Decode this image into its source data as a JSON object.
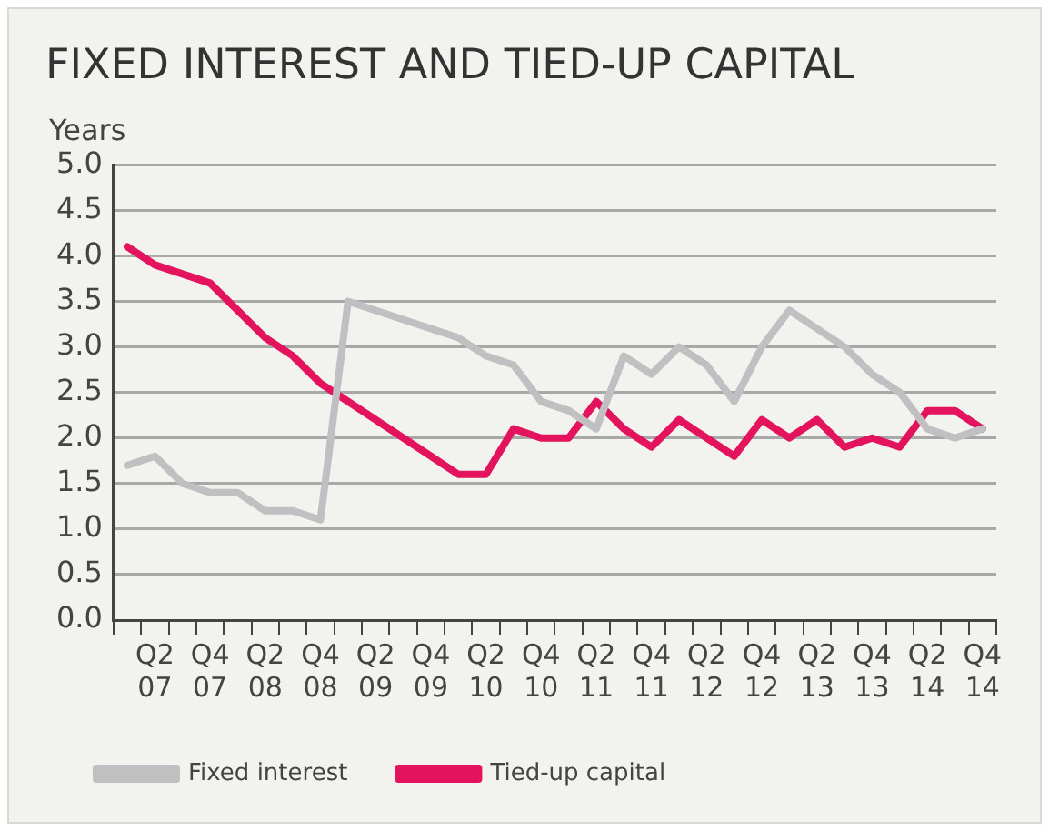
{
  "chart_data": {
    "type": "line",
    "title": "FIXED INTEREST AND TIED-UP CAPITAL",
    "ylabel": "Years",
    "categories": [
      null,
      "Q2 07",
      null,
      "Q4 07",
      null,
      "Q2 08",
      null,
      "Q4 08",
      null,
      "Q2 09",
      null,
      "Q4 09",
      null,
      "Q2 10",
      null,
      "Q4 10",
      null,
      "Q2 11",
      null,
      "Q4 11",
      null,
      "Q2 12",
      null,
      "Q4 12",
      null,
      "Q2 13",
      null,
      "Q4 13",
      null,
      "Q2 14",
      null,
      "Q4 14"
    ],
    "series": [
      {
        "name": "Fixed interest",
        "color": "#c0c0c2",
        "values": [
          1.7,
          1.8,
          1.5,
          1.4,
          1.4,
          1.2,
          1.2,
          1.1,
          3.5,
          3.4,
          3.3,
          3.2,
          3.1,
          2.9,
          2.8,
          2.4,
          2.3,
          2.1,
          2.9,
          2.7,
          3.0,
          2.8,
          2.4,
          3.0,
          3.4,
          3.2,
          3.0,
          2.7,
          2.5,
          2.1,
          2.0,
          2.1
        ]
      },
      {
        "name": "Tied-up capital",
        "color": "#e4135e",
        "values": [
          4.1,
          3.9,
          3.8,
          3.7,
          3.4,
          3.1,
          2.9,
          2.6,
          2.4,
          2.2,
          2.0,
          1.8,
          1.6,
          1.6,
          2.1,
          2.0,
          2.0,
          2.4,
          2.1,
          1.9,
          2.2,
          2.0,
          1.8,
          2.2,
          2.0,
          2.2,
          1.9,
          2.0,
          1.9,
          2.3,
          2.3,
          2.1
        ]
      }
    ],
    "ylim": [
      0,
      5
    ],
    "yticks": [
      {
        "value": 0,
        "label": "0.0"
      },
      0.5,
      {
        "value": 1,
        "label": "1.0"
      },
      1.5,
      {
        "value": 2,
        "label": "2.0"
      },
      2.5,
      {
        "value": 3,
        "label": "3.0"
      },
      3.5,
      {
        "value": 4,
        "label": "4.0"
      },
      4.5,
      {
        "value": 5,
        "label": "5.0"
      }
    ],
    "grid": "y",
    "legend": "bottom",
    "marker": "none",
    "line_style": "solid"
  }
}
